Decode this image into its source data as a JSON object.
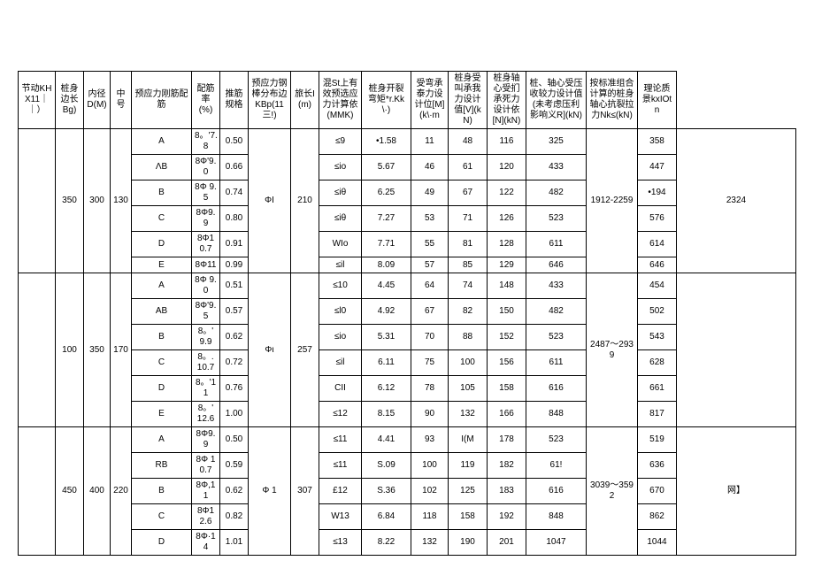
{
  "headers": {
    "c1": "节动KHX11｜｜）",
    "c2": "桩身边长Bg)",
    "c3": "内径D(M)",
    "c4": "中号",
    "c5": "预应力刚筋配筋",
    "c6": "配筋率(%)",
    "c7": "推筋规格",
    "c8": "预应力钢棒分布边KBp(11三!)",
    "c9": "旅长I(m)",
    "c10": "混St上有效预选应力计算依(MMK)",
    "c11": "桩身开裂弯矩*r.Kk\\·)",
    "c12": "受弯承泰力设计位[M](k\\·m",
    "c13": "桩身受叫承我力设计值[V](kN)",
    "c14": "桩身轴心受扪承死力设计依[N](kN)",
    "c15": "桩、轴心受压收较力设计值(未考虑压利影响义R](kN)",
    "c16": "按标准组合计算的桩身轴心抗裂拉力Nk≤(kN)",
    "c17": "理论质景kxIOtn"
  },
  "groups": [
    {
      "c1": "",
      "c2": "350",
      "c3": "300",
      "c4": "130",
      "c7": "ΦI",
      "c8": "210",
      "c15": "1912-2259",
      "c17": "2324",
      "rows": [
        {
          "d": "A",
          "e": "8。'7.8",
          "f": "0.50",
          "i": "≤9",
          "j": "•1.58",
          "k": "11",
          "l": "48",
          "m": "116",
          "n": "325",
          "p": "358"
        },
        {
          "d": "ΛB",
          "e": "8Φ'9.0",
          "f": "0.66",
          "i": "≤io",
          "j": "5.67",
          "k": "46",
          "l": "61",
          "m": "120",
          "n": "433",
          "p": "447"
        },
        {
          "d": "B",
          "e": "8Φ 9.5",
          "f": "0.74",
          "i": "≤iθ",
          "j": "6.25",
          "k": "49",
          "l": "67",
          "m": "122",
          "n": "482",
          "p": "•194"
        },
        {
          "d": "C",
          "e": "8Φ9.9",
          "f": "0.80",
          "i": "≤iθ",
          "j": "7.27",
          "k": "53",
          "l": "71",
          "m": "126",
          "n": "523",
          "p": "576"
        },
        {
          "d": "D",
          "e": "8Φ10.7",
          "f": "0.91",
          "i": "WIo",
          "j": "7.71",
          "k": "55",
          "l": "81",
          "m": "128",
          "n": "611",
          "p": "614"
        },
        {
          "d": "E",
          "e": "8Φ11",
          "f": "0.99",
          "i": "≤il",
          "j": "8.09",
          "k": "57",
          "l": "85",
          "m": "129",
          "n": "646",
          "p": "646"
        }
      ]
    },
    {
      "c1": "",
      "c2": "100",
      "c3": "350",
      "c4": "170",
      "c7": "Φι",
      "c8": "257",
      "c15": "2487～2939",
      "c17": "",
      "rows": [
        {
          "d": "A",
          "e": "8Φ 9.0",
          "f": "0.51",
          "i": "≤10",
          "j": "4.45",
          "k": "64",
          "l": "74",
          "m": "148",
          "n": "433",
          "p": "454"
        },
        {
          "d": "AB",
          "e": "8Φ'9.5",
          "f": "0.57",
          "i": "≤l0",
          "j": "4.92",
          "k": "67",
          "l": "82",
          "m": "150",
          "n": "482",
          "p": "502"
        },
        {
          "d": "B",
          "e": "8。' 9.9",
          "f": "0.62",
          "i": "≤io",
          "j": "5.31",
          "k": "70",
          "l": "88",
          "m": "152",
          "n": "523",
          "p": "543"
        },
        {
          "d": "C",
          "e": "8。. 10.7",
          "f": "0.72",
          "i": "≤il",
          "j": "6.11",
          "k": "75",
          "l": "100",
          "m": "156",
          "n": "611",
          "p": "628"
        },
        {
          "d": "D",
          "e": "8。'11",
          "f": "0.76",
          "i": "CII",
          "j": "6.12",
          "k": "78",
          "l": "105",
          "m": "158",
          "n": "616",
          "p": "661"
        },
        {
          "d": "E",
          "e": "8。' 12.6",
          "f": "1.00",
          "i": "≤12",
          "j": "8.15",
          "k": "90",
          "l": "132",
          "m": "166",
          "n": "848",
          "p": "817"
        }
      ]
    },
    {
      "c1": "",
      "c2": "450",
      "c3": "400",
      "c4": "220",
      "c7": "Φ 1",
      "c8": "307",
      "c15": "3039～3592",
      "c17": "网】",
      "rows": [
        {
          "d": "A",
          "e": "8Φ9.9",
          "f": "0.50",
          "i": "≤11",
          "j": "4.41",
          "k": "93",
          "l": "I(M",
          "m": "178",
          "n": "523",
          "p": "519"
        },
        {
          "d": "RB",
          "e": "8Φ 10.7",
          "f": "0.59",
          "i": "≤11",
          "j": "S.09",
          "k": "100",
          "l": "119",
          "m": "182",
          "n": "61!",
          "p": "636"
        },
        {
          "d": "B",
          "e": "8Φ,11",
          "f": "0.62",
          "i": "£12",
          "j": "S.36",
          "k": "102",
          "l": "125",
          "m": "183",
          "n": "616",
          "p": "670"
        },
        {
          "d": "C",
          "e": "8Φ12.6",
          "f": "0.82",
          "i": "W13",
          "j": "6.84",
          "k": "118",
          "l": "158",
          "m": "192",
          "n": "848",
          "p": "862"
        },
        {
          "d": "D",
          "e": "8Φ·14",
          "f": "1.01",
          "i": "≤13",
          "j": "8.22",
          "k": "132",
          "l": "190",
          "m": "201",
          "n": "1047",
          "p": "1044"
        }
      ]
    }
  ]
}
